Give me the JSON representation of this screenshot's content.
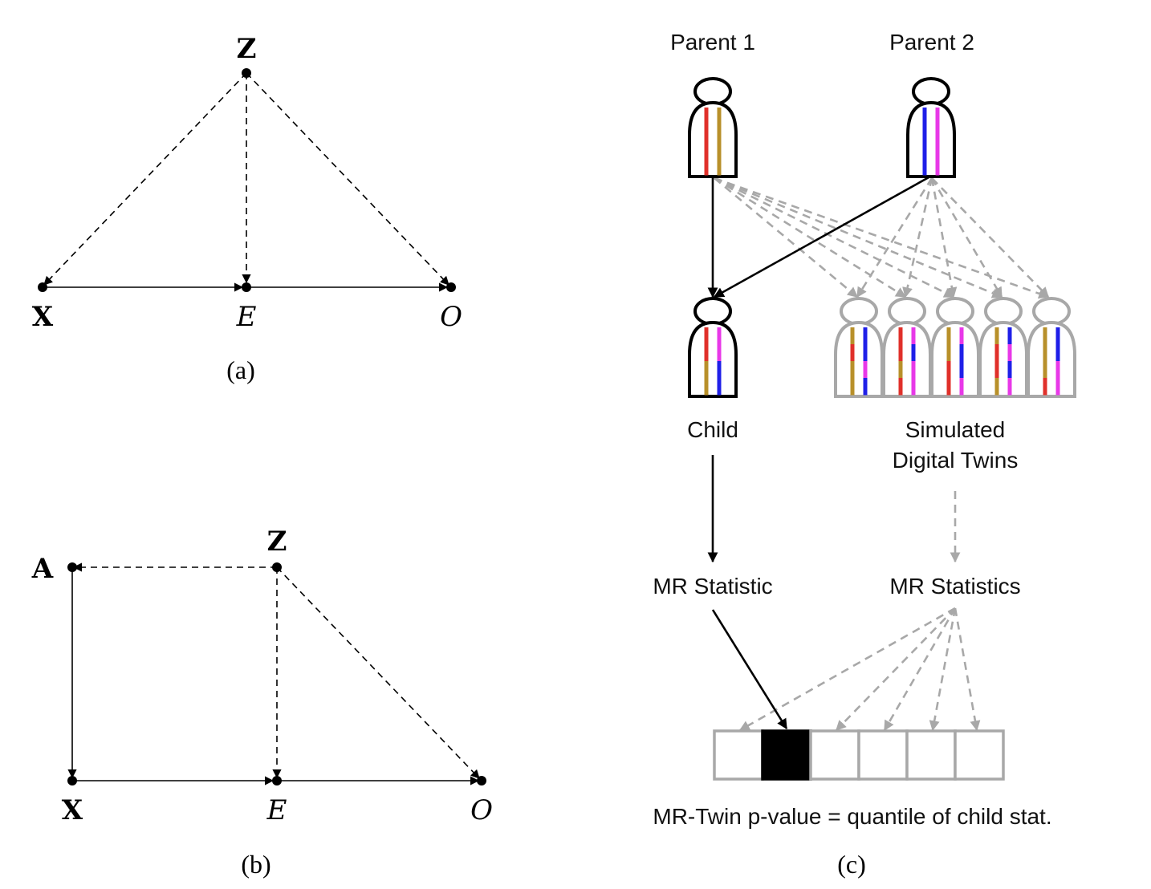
{
  "panel_a": {
    "nodes": {
      "z": "Z",
      "x": "X",
      "e": "E",
      "o": "O"
    },
    "caption": "(a)"
  },
  "panel_b": {
    "nodes": {
      "a": "A",
      "z": "Z",
      "x": "X",
      "e": "E",
      "o": "O"
    },
    "caption": "(b)"
  },
  "panel_c": {
    "parent1": "Parent 1",
    "parent2": "Parent 2",
    "child": "Child",
    "twins_line1": "Simulated",
    "twins_line2": "Digital Twins",
    "mr_statistic": "MR Statistic",
    "mr_statistics": "MR Statistics",
    "footer": "MR-Twin p-value = quantile of child stat.",
    "caption": "(c)",
    "colors": {
      "red": "#e0302a",
      "gold": "#b8902a",
      "blue": "#1f1fe8",
      "magenta": "#e838e8",
      "gray": "#a8a8a8"
    },
    "quantile_boxes": 6,
    "child_quantile_index": 1
  }
}
